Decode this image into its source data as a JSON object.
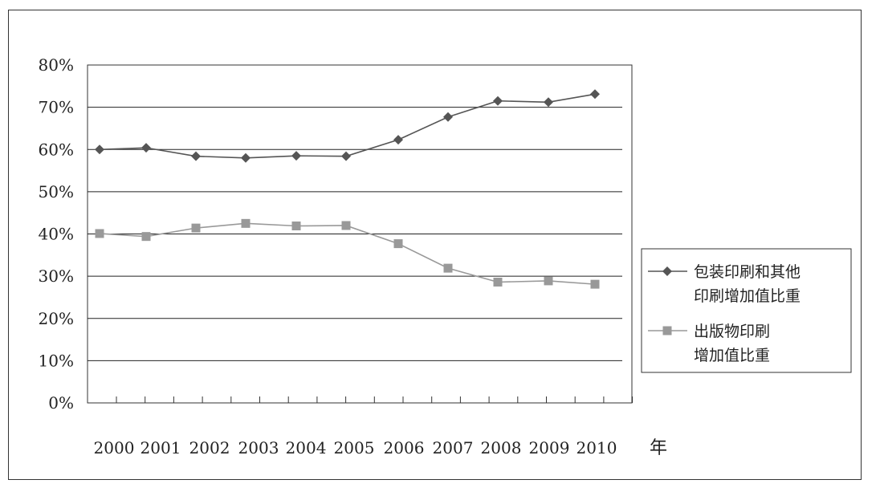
{
  "chart_data": {
    "type": "line",
    "title": "",
    "xlabel": "年",
    "ylabel": "",
    "categories": [
      "2000",
      "2001",
      "2002",
      "2003",
      "2004",
      "2005",
      "2006",
      "2007",
      "2008",
      "2009",
      "2010"
    ],
    "ylim": [
      0,
      0.8
    ],
    "y_ticks": [
      "0%",
      "10%",
      "20%",
      "30%",
      "40%",
      "50%",
      "60%",
      "70%",
      "80%"
    ],
    "grid": true,
    "legend_position": "right",
    "series": [
      {
        "name": "包装印刷和其他印刷增加值比重",
        "legend_lines": [
          "包装印刷和其他",
          "印刷增加值比重"
        ],
        "marker": "diamond",
        "color": "#555555",
        "values": [
          0.6,
          0.604,
          0.584,
          0.58,
          0.585,
          0.584,
          0.623,
          0.677,
          0.715,
          0.712,
          0.731
        ]
      },
      {
        "name": "出版物印刷增加值比重",
        "legend_lines": [
          "出版物印刷",
          "增加值比重"
        ],
        "marker": "square",
        "color": "#999999",
        "values": [
          0.401,
          0.394,
          0.414,
          0.425,
          0.419,
          0.42,
          0.377,
          0.319,
          0.286,
          0.289,
          0.281
        ]
      }
    ]
  }
}
